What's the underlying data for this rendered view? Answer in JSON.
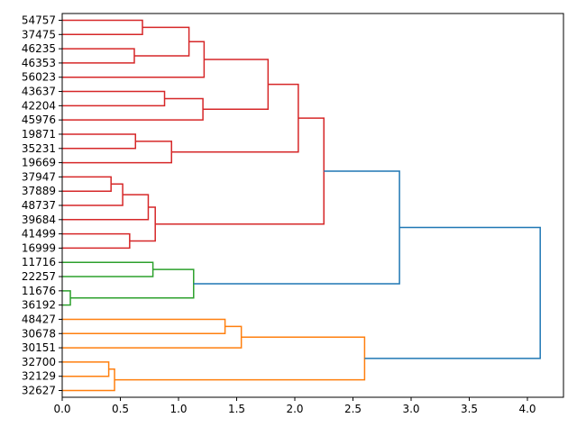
{
  "chart_data": {
    "type": "dendrogram",
    "title": "",
    "xlabel": "",
    "ylabel": "",
    "xlim": [
      0,
      4.31
    ],
    "xticks": [
      "0.0",
      "0.5",
      "1.0",
      "1.5",
      "2.0",
      "2.5",
      "3.0",
      "3.5",
      "4.0"
    ],
    "grid": false,
    "orientation": "left",
    "colors": {
      "red": "#d62728",
      "green": "#2ca02c",
      "orange": "#ff7f0e",
      "blue": "#1f77b4"
    },
    "leaves": [
      "54757",
      "37475",
      "46235",
      "46353",
      "56023",
      "43637",
      "42204",
      "45976",
      "19871",
      "35231",
      "19669",
      "37947",
      "37889",
      "48737",
      "39684",
      "41499",
      "16999",
      "11716",
      "22257",
      "11676",
      "36192",
      "48427",
      "30678",
      "30151",
      "32700",
      "32129",
      "32627"
    ],
    "links": [
      {
        "id": "c0",
        "a": "54757",
        "b": "37475",
        "height": 0.69,
        "color": "red"
      },
      {
        "id": "c1",
        "a": "46235",
        "b": "46353",
        "height": 0.62,
        "color": "red"
      },
      {
        "id": "c2",
        "a": "c0",
        "b": "c1",
        "height": 1.09,
        "color": "red"
      },
      {
        "id": "c3",
        "a": "c2",
        "b": "56023",
        "height": 1.22,
        "color": "red"
      },
      {
        "id": "c4",
        "a": "43637",
        "b": "42204",
        "height": 0.88,
        "color": "red"
      },
      {
        "id": "c5",
        "a": "c4",
        "b": "45976",
        "height": 1.21,
        "color": "red"
      },
      {
        "id": "c6",
        "a": "c3",
        "b": "c5",
        "height": 1.77,
        "color": "red"
      },
      {
        "id": "c7",
        "a": "19871",
        "b": "35231",
        "height": 0.63,
        "color": "red"
      },
      {
        "id": "c8",
        "a": "c7",
        "b": "19669",
        "height": 0.94,
        "color": "red"
      },
      {
        "id": "c9",
        "a": "c6",
        "b": "c8",
        "height": 2.03,
        "color": "red"
      },
      {
        "id": "c10",
        "a": "37947",
        "b": "37889",
        "height": 0.42,
        "color": "red"
      },
      {
        "id": "c11",
        "a": "c10",
        "b": "48737",
        "height": 0.52,
        "color": "red"
      },
      {
        "id": "c12",
        "a": "c11",
        "b": "39684",
        "height": 0.74,
        "color": "red"
      },
      {
        "id": "c13",
        "a": "41499",
        "b": "16999",
        "height": 0.58,
        "color": "red"
      },
      {
        "id": "c14",
        "a": "c12",
        "b": "c13",
        "height": 0.8,
        "color": "red"
      },
      {
        "id": "c15",
        "a": "c9",
        "b": "c14",
        "height": 2.25,
        "color": "red"
      },
      {
        "id": "c16",
        "a": "11716",
        "b": "22257",
        "height": 0.78,
        "color": "green"
      },
      {
        "id": "c17",
        "a": "11676",
        "b": "36192",
        "height": 0.07,
        "color": "green"
      },
      {
        "id": "c18",
        "a": "c16",
        "b": "c17",
        "height": 1.13,
        "color": "green"
      },
      {
        "id": "c19",
        "a": "c15",
        "b": "c18",
        "height": 2.9,
        "color": "blue"
      },
      {
        "id": "c20",
        "a": "48427",
        "b": "30678",
        "height": 1.4,
        "color": "orange"
      },
      {
        "id": "c21",
        "a": "c20",
        "b": "30151",
        "height": 1.54,
        "color": "orange"
      },
      {
        "id": "c22",
        "a": "32700",
        "b": "32129",
        "height": 0.4,
        "color": "orange"
      },
      {
        "id": "c23",
        "a": "c22",
        "b": "32627",
        "height": 0.45,
        "color": "orange"
      },
      {
        "id": "c24",
        "a": "c21",
        "b": "c23",
        "height": 2.6,
        "color": "orange"
      },
      {
        "id": "c25",
        "a": "c19",
        "b": "c24",
        "height": 4.11,
        "color": "blue"
      }
    ]
  }
}
